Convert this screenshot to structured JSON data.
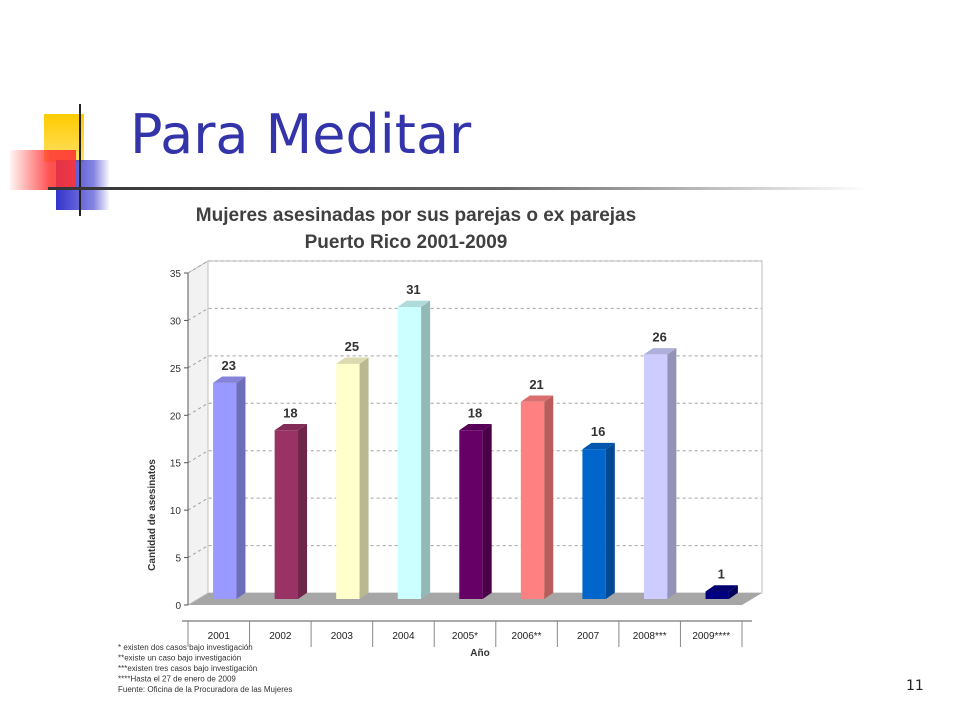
{
  "slide": {
    "title": "Para Meditar",
    "page_number": "11"
  },
  "chart_data": {
    "type": "bar",
    "title": "Mujeres asesinadas por sus parejas o ex parejas",
    "subtitle": "Puerto Rico 2001-2009",
    "xlabel": "Año",
    "ylabel": "Cantidad de asesinatos",
    "categories": [
      "2001",
      "2002",
      "2003",
      "2004",
      "2005*",
      "2006**",
      "2007",
      "2008***",
      "2009****"
    ],
    "values": [
      23,
      18,
      25,
      31,
      18,
      21,
      16,
      26,
      1
    ],
    "colors": [
      "#9999ff",
      "#993366",
      "#ffffcc",
      "#ccffff",
      "#660066",
      "#ff8080",
      "#0066cc",
      "#ccccff",
      "#000080"
    ],
    "ylim": [
      0,
      35
    ],
    "yticks": [
      0,
      5,
      10,
      15,
      20,
      25,
      30,
      35
    ],
    "grid": true,
    "footnotes": [
      "* existen dos casos bajo investigación",
      "**existe un caso bajo investigación",
      "***existen tres casos bajo investigación",
      "****Hasta el 27 de enero de 2009",
      "Fuente: Oficina de la Procuradora de las Mujeres"
    ]
  }
}
